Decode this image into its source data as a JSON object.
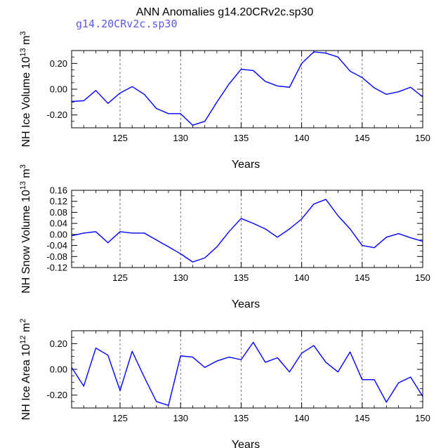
{
  "figure": {
    "title": "ANN Anomalies g14.20CRv2c.sp30",
    "run_label": "g14.20CRv2c.sp30",
    "run_label_color": "#5a5ae6",
    "line_color": "#0000ff"
  },
  "chart_data": [
    {
      "type": "line",
      "xlabel": "Years",
      "ylabel": "NH Ice Volume 10",
      "ylabel_exp": "13",
      "ylabel_unit": " m",
      "ylabel_unit_exp": "3",
      "xlim": [
        121,
        150
      ],
      "ylim": [
        -0.3,
        0.3
      ],
      "xticks": [
        125,
        130,
        135,
        140,
        145,
        150
      ],
      "yticks": [
        -0.2,
        0.0,
        0.2
      ],
      "ytick_labels": [
        "-0.20",
        "0.00",
        "0.20"
      ],
      "grid": "dashed vertical at major x ticks",
      "series": [
        {
          "x": [
            121,
            122,
            123,
            124,
            125,
            126,
            127,
            128,
            129,
            130,
            131,
            132,
            133,
            134,
            135,
            136,
            137,
            138,
            139,
            140,
            141,
            142,
            143,
            144,
            145,
            146,
            147,
            148,
            149,
            150
          ],
          "values": [
            -0.095,
            -0.09,
            -0.01,
            -0.11,
            -0.03,
            0.02,
            -0.04,
            -0.15,
            -0.19,
            -0.19,
            -0.28,
            -0.25,
            -0.1,
            0.04,
            0.155,
            0.145,
            0.06,
            0.025,
            0.015,
            0.2,
            0.29,
            0.28,
            0.25,
            0.14,
            0.09,
            0.01,
            -0.04,
            -0.02,
            0.015,
            -0.06
          ]
        }
      ]
    },
    {
      "type": "line",
      "xlabel": "Years",
      "ylabel": "NH Snow Volume 10",
      "ylabel_exp": "13",
      "ylabel_unit": " m",
      "ylabel_unit_exp": "3",
      "xlim": [
        121,
        150
      ],
      "ylim": [
        -0.12,
        0.16
      ],
      "xticks": [
        125,
        130,
        135,
        140,
        145,
        150
      ],
      "yticks": [
        -0.12,
        -0.08,
        -0.04,
        0.0,
        0.04,
        0.08,
        0.12,
        0.16
      ],
      "ytick_labels": [
        "-0.12",
        "-0.08",
        "-0.04",
        "0.00",
        "0.04",
        "0.08",
        "0.12",
        "0.16"
      ],
      "grid": "dashed vertical at major x ticks",
      "series": [
        {
          "x": [
            121,
            122,
            123,
            124,
            125,
            126,
            127,
            128,
            129,
            130,
            131,
            132,
            133,
            134,
            135,
            136,
            137,
            138,
            139,
            140,
            141,
            142,
            143,
            144,
            145,
            146,
            147,
            148,
            149,
            150
          ],
          "values": [
            -0.005,
            0.005,
            0.01,
            -0.03,
            0.01,
            0.005,
            0.005,
            -0.02,
            -0.045,
            -0.07,
            -0.1,
            -0.085,
            -0.045,
            0.01,
            0.058,
            0.04,
            0.02,
            -0.01,
            0.02,
            0.056,
            0.11,
            0.127,
            0.068,
            0.02,
            -0.04,
            -0.048,
            -0.01,
            0.003,
            -0.012,
            -0.025
          ]
        }
      ]
    },
    {
      "type": "line",
      "xlabel": "Years",
      "ylabel": "NH Ice Area 10",
      "ylabel_exp": "12",
      "ylabel_unit": " m",
      "ylabel_unit_exp": "2",
      "xlim": [
        121,
        150
      ],
      "ylim": [
        -0.3,
        0.3
      ],
      "xticks": [
        125,
        130,
        135,
        140,
        145,
        150
      ],
      "yticks": [
        -0.2,
        0.0,
        0.2
      ],
      "ytick_labels": [
        "-0.20",
        "0.00",
        "0.20"
      ],
      "grid": "dashed vertical at major x ticks",
      "series": [
        {
          "x": [
            121,
            122,
            123,
            124,
            125,
            126,
            127,
            128,
            129,
            130,
            131,
            132,
            133,
            134,
            135,
            136,
            137,
            138,
            139,
            140,
            141,
            142,
            143,
            144,
            145,
            146,
            147,
            148,
            149,
            150
          ],
          "values": [
            0.015,
            -0.13,
            0.165,
            0.11,
            -0.165,
            0.14,
            -0.06,
            -0.25,
            -0.28,
            0.105,
            0.095,
            0.015,
            0.065,
            0.095,
            0.075,
            0.21,
            0.055,
            0.09,
            -0.02,
            0.125,
            0.185,
            0.055,
            -0.02,
            0.135,
            -0.08,
            -0.08,
            -0.255,
            -0.105,
            -0.06,
            -0.21
          ]
        }
      ]
    }
  ]
}
